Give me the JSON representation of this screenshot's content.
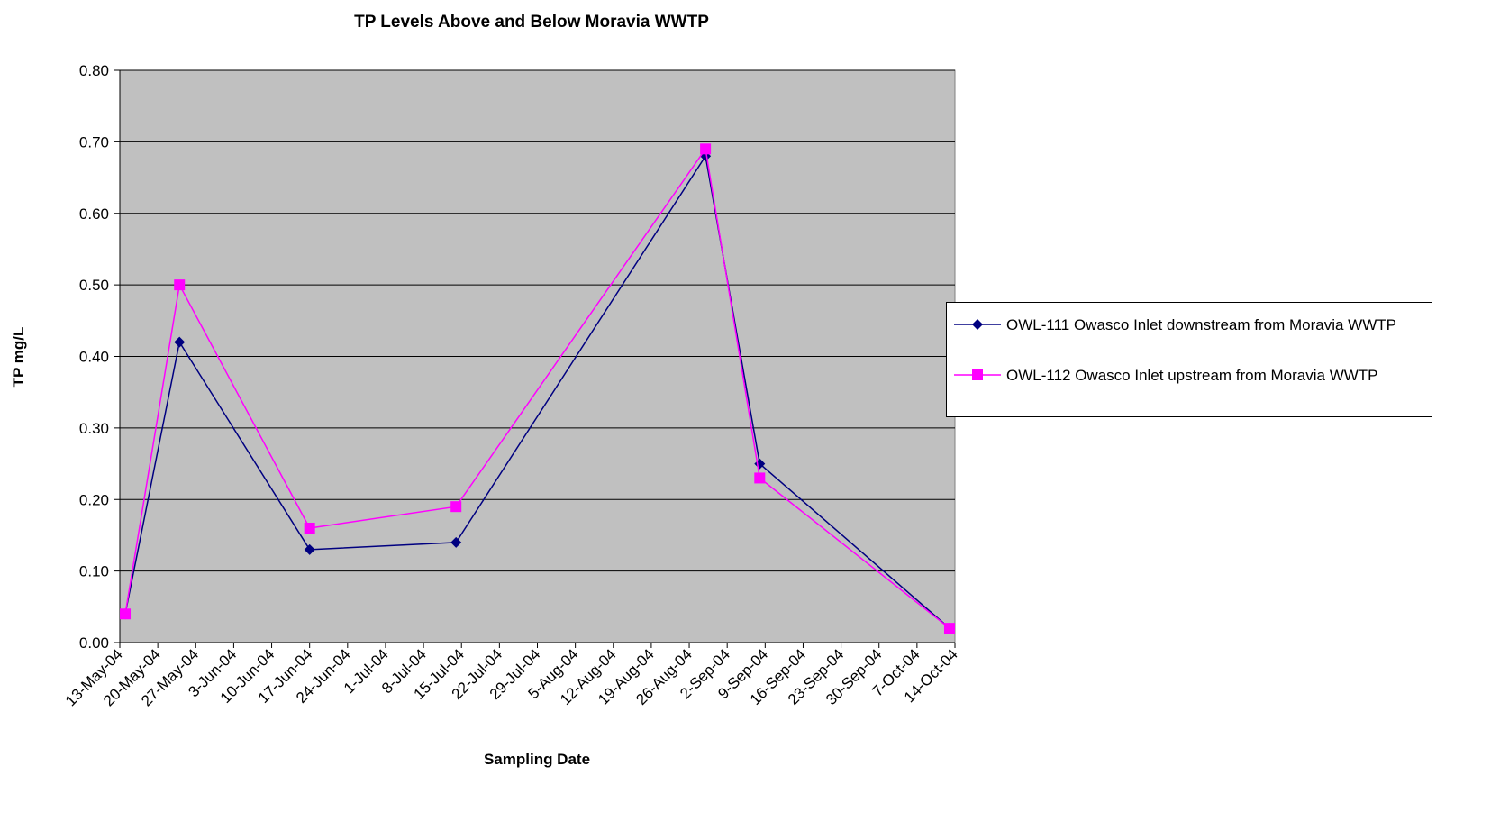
{
  "chart_data": {
    "type": "line",
    "title": "TP Levels Above and Below Moravia WWTP",
    "x_label": "Sampling Date",
    "y_label": "TP mg/L",
    "x": [
      "14-May-04",
      "24-May-04",
      "17-Jun-04",
      "14-Jul-04",
      "29-Aug-04",
      "8-Sep-04",
      "13-Oct-04"
    ],
    "series": [
      {
        "name": "OWL-111 Owasco Inlet downstream from Moravia WWTP",
        "color": "#000080",
        "marker": "diamond",
        "values": [
          0.04,
          0.42,
          0.13,
          0.14,
          0.68,
          0.25,
          0.02
        ]
      },
      {
        "name": "OWL-112 Owasco Inlet upstream from Moravia WWTP",
        "color": "#ff00ff",
        "marker": "square",
        "values": [
          0.04,
          0.5,
          0.16,
          0.19,
          0.69,
          0.23,
          0.02
        ]
      }
    ],
    "xlim": [
      "13-May-04",
      "14-Oct-04"
    ],
    "xticks": [
      "13-May-04",
      "20-May-04",
      "27-May-04",
      "3-Jun-04",
      "10-Jun-04",
      "17-Jun-04",
      "24-Jun-04",
      "1-Jul-04",
      "8-Jul-04",
      "15-Jul-04",
      "22-Jul-04",
      "29-Jul-04",
      "5-Aug-04",
      "12-Aug-04",
      "19-Aug-04",
      "26-Aug-04",
      "2-Sep-04",
      "9-Sep-04",
      "16-Sep-04",
      "23-Sep-04",
      "30-Sep-04",
      "7-Oct-04",
      "14-Oct-04"
    ],
    "ylim": [
      0,
      0.8
    ],
    "yticks": [
      {
        "value": 0,
        "label": "0.00"
      },
      {
        "value": 0.1,
        "label": "0.10"
      },
      {
        "value": 0.2,
        "label": "0.20"
      },
      {
        "value": 0.3,
        "label": "0.30"
      },
      {
        "value": 0.4,
        "label": "0.40"
      },
      {
        "value": 0.5,
        "label": "0.50"
      },
      {
        "value": 0.6,
        "label": "0.60"
      },
      {
        "value": 0.7,
        "label": "0.70"
      },
      {
        "value": 0.8,
        "label": "0.80"
      }
    ],
    "grid": true,
    "plot_background": "#c0c0c0",
    "legend": "right"
  }
}
